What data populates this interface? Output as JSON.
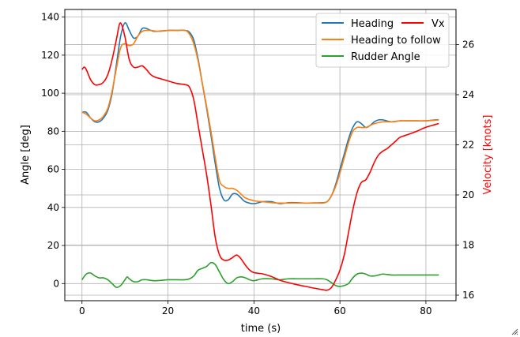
{
  "chart_data": {
    "type": "line",
    "xlabel": "time (s)",
    "ylabel_left": "Angle [deg]",
    "ylabel_right": "Velocity [knots]",
    "xlim": [
      -4,
      87
    ],
    "ylim_left": [
      -9,
      144
    ],
    "ylim_right": [
      15.78,
      27.4
    ],
    "x_ticks": [
      0,
      20,
      40,
      60,
      80
    ],
    "y_left_ticks": [
      0,
      20,
      40,
      60,
      80,
      100,
      120,
      140
    ],
    "y_right_ticks": [
      16,
      18,
      20,
      22,
      24,
      26
    ],
    "grid": true,
    "legend_position": "top-right",
    "colors": {
      "heading": "#1f77b4",
      "heading_to_follow": "#ff7f0e",
      "rudder": "#2ca02c",
      "vx": "#ff0000",
      "right_axis_label": "#ff0000",
      "grid": "#b0b0b0"
    },
    "series": [
      {
        "name": "Heading",
        "axis": "left",
        "points": [
          [
            0,
            90
          ],
          [
            1,
            90
          ],
          [
            2,
            87
          ],
          [
            3,
            85
          ],
          [
            4,
            85
          ],
          [
            5,
            87
          ],
          [
            6,
            91
          ],
          [
            7,
            100
          ],
          [
            8,
            115
          ],
          [
            9,
            130
          ],
          [
            10,
            137
          ],
          [
            11,
            133
          ],
          [
            12,
            129
          ],
          [
            13,
            130
          ],
          [
            14,
            134
          ],
          [
            15,
            134
          ],
          [
            16,
            133
          ],
          [
            17,
            132.5
          ],
          [
            20,
            133
          ],
          [
            22,
            133
          ],
          [
            24,
            133
          ],
          [
            25,
            132
          ],
          [
            26,
            128
          ],
          [
            27,
            118
          ],
          [
            28,
            105
          ],
          [
            29,
            92
          ],
          [
            30,
            78
          ],
          [
            31,
            63
          ],
          [
            32,
            50
          ],
          [
            33,
            44
          ],
          [
            34,
            44
          ],
          [
            35,
            47
          ],
          [
            36,
            47
          ],
          [
            37,
            45
          ],
          [
            38,
            43
          ],
          [
            40,
            42
          ],
          [
            42,
            43
          ],
          [
            44,
            43
          ],
          [
            46,
            42
          ],
          [
            48,
            42.5
          ],
          [
            50,
            42.5
          ],
          [
            52,
            42.3
          ],
          [
            54,
            42.4
          ],
          [
            56,
            42.5
          ],
          [
            57,
            43
          ],
          [
            58,
            46
          ],
          [
            59,
            52
          ],
          [
            60,
            60
          ],
          [
            61,
            68
          ],
          [
            62,
            76
          ],
          [
            63,
            82
          ],
          [
            64,
            85
          ],
          [
            65,
            84
          ],
          [
            66,
            82
          ],
          [
            67,
            83
          ],
          [
            68,
            85
          ],
          [
            69,
            86
          ],
          [
            70,
            86
          ],
          [
            72,
            85
          ],
          [
            74,
            85.5
          ],
          [
            76,
            85.5
          ],
          [
            78,
            85.5
          ],
          [
            80,
            85.5
          ],
          [
            82,
            86
          ],
          [
            83,
            86
          ]
        ]
      },
      {
        "name": "Heading to follow",
        "axis": "left",
        "points": [
          [
            0,
            90
          ],
          [
            1,
            89
          ],
          [
            2,
            87
          ],
          [
            3,
            85.5
          ],
          [
            4,
            86
          ],
          [
            5,
            88
          ],
          [
            6,
            92
          ],
          [
            7,
            101
          ],
          [
            8,
            113
          ],
          [
            9,
            124
          ],
          [
            10,
            126
          ],
          [
            11,
            125
          ],
          [
            12,
            126
          ],
          [
            13,
            130
          ],
          [
            14,
            132.5
          ],
          [
            15,
            133
          ],
          [
            16,
            133
          ],
          [
            18,
            132.5
          ],
          [
            20,
            133
          ],
          [
            22,
            133
          ],
          [
            24,
            133
          ],
          [
            25,
            131
          ],
          [
            26,
            126
          ],
          [
            27,
            117
          ],
          [
            28,
            105
          ],
          [
            29,
            93
          ],
          [
            30,
            80
          ],
          [
            31,
            66
          ],
          [
            32,
            54
          ],
          [
            33,
            51
          ],
          [
            34,
            50
          ],
          [
            35,
            50
          ],
          [
            36,
            49
          ],
          [
            37,
            47
          ],
          [
            38,
            45
          ],
          [
            40,
            43.5
          ],
          [
            42,
            43
          ],
          [
            44,
            42.5
          ],
          [
            46,
            42.3
          ],
          [
            48,
            42.3
          ],
          [
            50,
            42.3
          ],
          [
            52,
            42.3
          ],
          [
            54,
            42.3
          ],
          [
            56,
            42.3
          ],
          [
            57,
            43
          ],
          [
            58,
            46
          ],
          [
            59,
            51
          ],
          [
            60,
            58
          ],
          [
            61,
            66
          ],
          [
            62,
            74
          ],
          [
            63,
            80
          ],
          [
            64,
            82
          ],
          [
            65,
            82
          ],
          [
            66,
            82
          ],
          [
            67,
            83
          ],
          [
            68,
            84
          ],
          [
            70,
            85
          ],
          [
            72,
            85
          ],
          [
            74,
            85.5
          ],
          [
            76,
            85.5
          ],
          [
            78,
            85.5
          ],
          [
            80,
            85.5
          ],
          [
            83,
            86
          ]
        ]
      },
      {
        "name": "Rudder Angle",
        "axis": "left",
        "points": [
          [
            0,
            2
          ],
          [
            1,
            5
          ],
          [
            2,
            5.5
          ],
          [
            3,
            4
          ],
          [
            4,
            3
          ],
          [
            5,
            3
          ],
          [
            6,
            2
          ],
          [
            7,
            0
          ],
          [
            8,
            -2
          ],
          [
            9,
            -1
          ],
          [
            10,
            2
          ],
          [
            10.5,
            3.5
          ],
          [
            11,
            2.5
          ],
          [
            12,
            1
          ],
          [
            13,
            1
          ],
          [
            14,
            2
          ],
          [
            15,
            2
          ],
          [
            17,
            1.5
          ],
          [
            20,
            2
          ],
          [
            22,
            2
          ],
          [
            24,
            2
          ],
          [
            25,
            2.5
          ],
          [
            26,
            4
          ],
          [
            27,
            7
          ],
          [
            28,
            8
          ],
          [
            29,
            9
          ],
          [
            30,
            11
          ],
          [
            31,
            10
          ],
          [
            32,
            6
          ],
          [
            33,
            2
          ],
          [
            34,
            0
          ],
          [
            35,
            1
          ],
          [
            36,
            3
          ],
          [
            37,
            3.5
          ],
          [
            38,
            3
          ],
          [
            39,
            2
          ],
          [
            40,
            1.5
          ],
          [
            42,
            2.5
          ],
          [
            44,
            2.5
          ],
          [
            46,
            2
          ],
          [
            48,
            2.5
          ],
          [
            50,
            2.5
          ],
          [
            52,
            2.5
          ],
          [
            54,
            2.5
          ],
          [
            56,
            2.5
          ],
          [
            57,
            2
          ],
          [
            58,
            0.5
          ],
          [
            59,
            -1
          ],
          [
            60,
            -1.5
          ],
          [
            61,
            -1
          ],
          [
            62,
            0
          ],
          [
            63,
            3
          ],
          [
            64,
            5
          ],
          [
            65,
            5.5
          ],
          [
            66,
            5
          ],
          [
            67,
            4
          ],
          [
            68,
            4
          ],
          [
            69,
            4.5
          ],
          [
            70,
            5
          ],
          [
            72,
            4.5
          ],
          [
            74,
            4.5
          ],
          [
            76,
            4.5
          ],
          [
            78,
            4.5
          ],
          [
            80,
            4.5
          ],
          [
            83,
            4.5
          ]
        ]
      },
      {
        "name": "Vx",
        "axis": "right",
        "points": [
          [
            0,
            25
          ],
          [
            0.5,
            25.1
          ],
          [
            1,
            25
          ],
          [
            2,
            24.6
          ],
          [
            3,
            24.4
          ],
          [
            4,
            24.4
          ],
          [
            5,
            24.5
          ],
          [
            6,
            24.8
          ],
          [
            7,
            25.4
          ],
          [
            8,
            26.2
          ],
          [
            8.7,
            26.8
          ],
          [
            9.2,
            26.8
          ],
          [
            10,
            26.3
          ],
          [
            11,
            25.4
          ],
          [
            12,
            25.1
          ],
          [
            13,
            25.1
          ],
          [
            14,
            25.15
          ],
          [
            15,
            25
          ],
          [
            16,
            24.8
          ],
          [
            17,
            24.7
          ],
          [
            18,
            24.65
          ],
          [
            20,
            24.55
          ],
          [
            22,
            24.45
          ],
          [
            24,
            24.4
          ],
          [
            25,
            24.3
          ],
          [
            26,
            23.8
          ],
          [
            27,
            22.8
          ],
          [
            28,
            21.8
          ],
          [
            29,
            20.8
          ],
          [
            30,
            19.6
          ],
          [
            31,
            18.3
          ],
          [
            32,
            17.6
          ],
          [
            33,
            17.4
          ],
          [
            34,
            17.4
          ],
          [
            35,
            17.5
          ],
          [
            36,
            17.6
          ],
          [
            37,
            17.45
          ],
          [
            38,
            17.2
          ],
          [
            39,
            17
          ],
          [
            40,
            16.9
          ],
          [
            42,
            16.85
          ],
          [
            44,
            16.75
          ],
          [
            46,
            16.6
          ],
          [
            48,
            16.5
          ],
          [
            50,
            16.42
          ],
          [
            52,
            16.35
          ],
          [
            54,
            16.28
          ],
          [
            56,
            16.22
          ],
          [
            57,
            16.2
          ],
          [
            58,
            16.3
          ],
          [
            59,
            16.6
          ],
          [
            60,
            17
          ],
          [
            61,
            17.6
          ],
          [
            62,
            18.5
          ],
          [
            63,
            19.4
          ],
          [
            64,
            20.1
          ],
          [
            65,
            20.5
          ],
          [
            66,
            20.6
          ],
          [
            67,
            20.9
          ],
          [
            68,
            21.3
          ],
          [
            69,
            21.6
          ],
          [
            70,
            21.75
          ],
          [
            71,
            21.85
          ],
          [
            72,
            22
          ],
          [
            73,
            22.15
          ],
          [
            74,
            22.3
          ],
          [
            76,
            22.42
          ],
          [
            78,
            22.55
          ],
          [
            80,
            22.7
          ],
          [
            82,
            22.8
          ],
          [
            83,
            22.85
          ]
        ]
      }
    ]
  }
}
